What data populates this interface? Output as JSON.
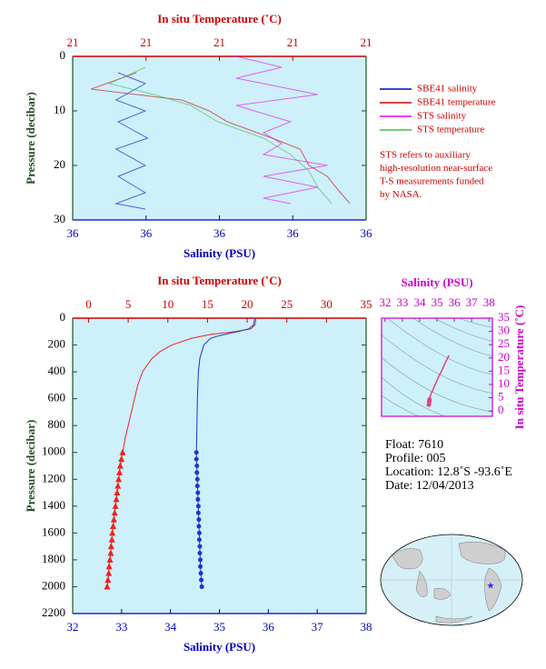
{
  "chart_data": [
    {
      "type": "profile",
      "x_label": "In situ Temperature (˚C)",
      "x2_label": "Salinity (PSU)",
      "y_label": "Pressure (decibar)",
      "xlim": [
        20.8,
        21.2
      ],
      "xticks": [
        {
          "value": 20.8,
          "label": "21"
        },
        {
          "value": 20.9,
          "label": "21"
        },
        {
          "value": 21.0,
          "label": "21"
        },
        {
          "value": 21.1,
          "label": "21"
        },
        {
          "value": 21.2,
          "label": "21"
        }
      ],
      "x2lim": [
        35.6,
        36.0
      ],
      "x2ticks": [
        {
          "value": 35.6,
          "label": "36"
        },
        {
          "value": 35.7,
          "label": "36"
        },
        {
          "value": 35.8,
          "label": "36"
        },
        {
          "value": 35.9,
          "label": "36"
        },
        {
          "value": 36.0,
          "label": "36"
        }
      ],
      "ylim": [
        0,
        30
      ],
      "yticks": [
        0,
        10,
        20,
        30
      ],
      "y_inverted": true,
      "series": [
        {
          "name": "SBE41 salinity",
          "color": "#0000cc",
          "axis": "x2",
          "pressure": [
            3,
            5,
            8,
            10,
            12,
            15,
            17,
            20,
            22,
            25,
            27,
            28
          ],
          "values": [
            35.662,
            35.699,
            35.659,
            35.699,
            35.662,
            35.702,
            35.659,
            35.699,
            35.662,
            35.699,
            35.659,
            35.699
          ]
        },
        {
          "name": "SBE41 temperature",
          "color": "#cc0000",
          "axis": "x",
          "pressure": [
            3,
            6,
            8,
            10,
            12,
            15,
            17,
            20,
            22,
            25,
            27
          ],
          "values": [
            20.887,
            20.825,
            20.949,
            20.986,
            21.011,
            21.072,
            21.11,
            21.122,
            21.147,
            21.165,
            21.178
          ]
        },
        {
          "name": "STS salinity",
          "color": "#ee00ee",
          "axis": "x2",
          "pressure": [
            0,
            2,
            4,
            7,
            9,
            12,
            14,
            16,
            18,
            20,
            22,
            24,
            26,
            27
          ],
          "values": [
            35.823,
            35.885,
            35.823,
            35.934,
            35.823,
            35.897,
            35.86,
            35.885,
            35.86,
            35.947,
            35.86,
            35.934,
            35.86,
            35.897
          ]
        },
        {
          "name": "STS temperature",
          "color": "#44bb44",
          "axis": "x",
          "pressure": [
            2,
            5,
            7,
            9,
            12,
            15,
            18,
            21,
            24,
            27
          ],
          "values": [
            20.899,
            20.85,
            20.911,
            20.961,
            20.998,
            21.06,
            21.097,
            21.122,
            21.134,
            21.153
          ]
        }
      ],
      "note": [
        "STS refers to auxiliary",
        "high-resolution near-surface",
        "T-S measurements funded",
        "by NASA."
      ]
    },
    {
      "type": "profile",
      "x_label": "In situ Temperature (˚C)",
      "x2_label": "Salinity (PSU)",
      "y_label": "Pressure (decibar)",
      "xlim": [
        -2,
        35
      ],
      "xticks": [
        0,
        5,
        10,
        15,
        20,
        25,
        30,
        35
      ],
      "x2lim": [
        32,
        38
      ],
      "x2ticks": [
        32,
        33,
        34,
        35,
        36,
        37,
        38
      ],
      "ylim": [
        0,
        2200
      ],
      "yticks": [
        0,
        200,
        400,
        600,
        800,
        1000,
        1200,
        1400,
        1600,
        1800,
        2000,
        2200
      ],
      "y_inverted": true,
      "series": [
        {
          "color": "#ee2222",
          "axis": "x",
          "pressure": [
            0,
            50,
            80,
            100,
            120,
            150,
            200,
            250,
            300,
            400,
            500,
            600,
            700,
            800,
            900,
            1000
          ],
          "values": [
            21.1,
            21.0,
            20.5,
            18.5,
            15.5,
            13.0,
            10.5,
            9.0,
            8.0,
            6.8,
            6.2,
            5.8,
            5.4,
            5.0,
            4.6,
            4.3
          ]
        },
        {
          "color": "#ee2222",
          "axis": "x",
          "marker": "triangle",
          "pressure": [
            1000,
            1050,
            1100,
            1150,
            1200,
            1250,
            1300,
            1350,
            1400,
            1450,
            1500,
            1550,
            1600,
            1650,
            1700,
            1750,
            1800,
            1850,
            1900,
            1950,
            2000
          ],
          "values": [
            4.3,
            4.15,
            4.0,
            3.9,
            3.8,
            3.7,
            3.6,
            3.5,
            3.4,
            3.3,
            3.2,
            3.1,
            3.0,
            2.95,
            2.85,
            2.8,
            2.7,
            2.6,
            2.55,
            2.45,
            2.35
          ]
        },
        {
          "color": "#2233cc",
          "axis": "x2",
          "pressure": [
            0,
            50,
            80,
            100,
            130,
            150,
            200,
            300,
            400,
            600,
            800,
            1000
          ],
          "values": [
            35.72,
            35.7,
            35.6,
            35.38,
            35.0,
            34.82,
            34.68,
            34.6,
            34.57,
            34.55,
            34.54,
            34.53
          ]
        },
        {
          "color": "#2233cc",
          "axis": "x2",
          "marker": "circle",
          "pressure": [
            1000,
            1050,
            1100,
            1150,
            1200,
            1250,
            1300,
            1350,
            1400,
            1450,
            1500,
            1550,
            1600,
            1650,
            1700,
            1750,
            1800,
            1850,
            1900,
            1950,
            2000
          ],
          "values": [
            34.53,
            34.53,
            34.54,
            34.54,
            34.55,
            34.55,
            34.56,
            34.56,
            34.57,
            34.57,
            34.58,
            34.58,
            34.59,
            34.59,
            34.6,
            34.6,
            34.61,
            34.61,
            34.62,
            34.63,
            34.64
          ]
        }
      ]
    },
    {
      "type": "line",
      "x_label": "Salinity (PSU)",
      "y_label": "In situ Temperature (˚C)",
      "xlim": [
        31.8,
        38.2
      ],
      "xticks": [
        32,
        33,
        34,
        35,
        36,
        37,
        38
      ],
      "ylim": [
        -2,
        35
      ],
      "yticks": [
        0,
        5,
        10,
        15,
        20,
        25,
        30,
        35
      ],
      "color": "#e0407a",
      "x": [
        34.53,
        34.55,
        34.57,
        34.6,
        34.7,
        34.9,
        35.1,
        35.3,
        35.5,
        35.7
      ],
      "values": [
        2.4,
        3.5,
        4.3,
        5.5,
        7,
        10,
        13,
        15.5,
        18.5,
        21
      ]
    }
  ],
  "info": {
    "lines": [
      "Float:  7610",
      "Profile:  005",
      "Location:  12.8˚S  -93.6˚E",
      "Date:  12/04/2013"
    ]
  }
}
